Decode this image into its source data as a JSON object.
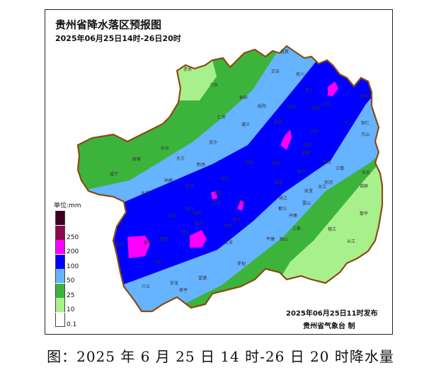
{
  "map": {
    "title": "贵州省降水落区预报图",
    "subtitle": "2025年06月25日14时-26日20时",
    "issue_time": "2025年06月25日11时发布",
    "agency": "贵州省气象台 制",
    "caption": "图：2025 年 6 月 25 日 14 时-26 日 20 时降水量",
    "legend": {
      "unit": "单位:mm",
      "items": [
        {
          "color": "#3d0022"
        },
        {
          "color": "#8b0a4f",
          "label": "250"
        },
        {
          "color": "#ff00ff",
          "label": "200"
        },
        {
          "color": "#0000ff",
          "label": "100"
        },
        {
          "color": "#66b3ff",
          "label": "50"
        },
        {
          "color": "#3cb43c",
          "label": "25"
        },
        {
          "color": "#a8f08c",
          "label": "10"
        },
        {
          "color": "#ffffff",
          "label": "0.1"
        }
      ]
    },
    "cities": [
      "赤水",
      "习水",
      "桐梓",
      "道真",
      "正安",
      "务川",
      "绥阳",
      "湄潭",
      "凤冈",
      "遵义",
      "仁怀",
      "金沙",
      "德江",
      "思南",
      "印江",
      "松桃",
      "江口",
      "铜仁",
      "石阡",
      "万山",
      "镇远",
      "三穗",
      "天柱",
      "锦屏",
      "台江",
      "剑河",
      "凯里",
      "雷山",
      "榕江",
      "黎平",
      "从江",
      "丹寨",
      "三都",
      "黄平",
      "施秉",
      "余庆",
      "毕节",
      "赫章",
      "威宁",
      "大方",
      "黔西",
      "纳雍",
      "织金",
      "水城",
      "普定",
      "六枝",
      "安顺",
      "镇宁",
      "关岭",
      "盘州",
      "普安",
      "晴隆",
      "兴仁",
      "贞丰",
      "贵阳",
      "平坝",
      "修文",
      "开阳",
      "瓮安",
      "福泉",
      "龙里",
      "惠水",
      "长顺",
      "罗甸",
      "望谟",
      "安龙",
      "兴义",
      "册亨",
      "平塘",
      "独山",
      "都匀",
      "麻江"
    ]
  }
}
